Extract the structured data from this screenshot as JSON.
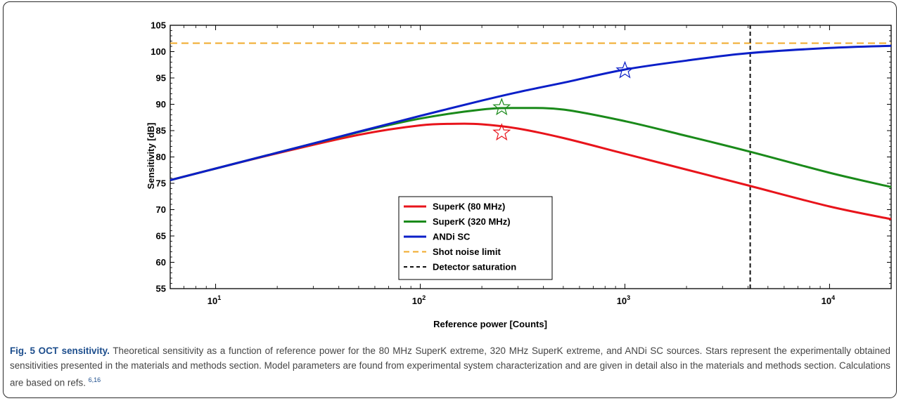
{
  "chart_data": {
    "type": "line",
    "xlabel": "Reference power [Counts]",
    "ylabel": "Sensitivity [dB]",
    "xscale": "log",
    "xlim": [
      6,
      20000
    ],
    "ylim": [
      55,
      105
    ],
    "xticks": [
      {
        "value": 10,
        "label": "10",
        "exp": "1"
      },
      {
        "value": 100,
        "label": "10",
        "exp": "2"
      },
      {
        "value": 1000,
        "label": "10",
        "exp": "3"
      },
      {
        "value": 10000,
        "label": "10",
        "exp": "4"
      }
    ],
    "yticks": [
      55,
      60,
      65,
      70,
      75,
      80,
      85,
      90,
      95,
      100,
      105
    ],
    "grid": false,
    "legend_position": "bottom-center",
    "series": [
      {
        "name": "SuperK (80 MHz)",
        "color": "#e8141b",
        "style": "solid",
        "x": [
          6,
          10,
          20,
          50,
          100,
          150,
          200,
          300,
          500,
          1000,
          2000,
          4000,
          10000,
          20000
        ],
        "y": [
          75.6,
          77.8,
          80.7,
          84.2,
          86.0,
          86.3,
          86.2,
          85.4,
          83.6,
          80.6,
          77.6,
          74.6,
          70.6,
          68.2
        ]
      },
      {
        "name": "SuperK (320 MHz)",
        "color": "#1a8a1a",
        "style": "solid",
        "x": [
          6,
          10,
          20,
          50,
          100,
          200,
          300,
          500,
          1000,
          2000,
          4000,
          10000,
          20000
        ],
        "y": [
          75.6,
          77.8,
          80.8,
          84.7,
          87.3,
          89.0,
          89.3,
          89.0,
          86.8,
          84.0,
          81.1,
          77.0,
          74.3
        ]
      },
      {
        "name": "ANDi SC",
        "color": "#0b1fc8",
        "style": "solid",
        "x": [
          6,
          10,
          20,
          50,
          100,
          200,
          300,
          500,
          1000,
          2000,
          4000,
          10000,
          20000
        ],
        "y": [
          75.6,
          77.8,
          80.8,
          84.8,
          87.8,
          90.7,
          92.3,
          94.1,
          96.6,
          98.3,
          99.7,
          100.7,
          101.1
        ]
      },
      {
        "name": "Shot noise limit",
        "color": "#f0aa2a",
        "style": "dashed",
        "x": [
          6,
          20000
        ],
        "y": [
          101.6,
          101.6
        ]
      },
      {
        "name": "Detector saturation",
        "color": "#111111",
        "style": "dashed",
        "x": [
          4096,
          4096
        ],
        "y": [
          55,
          105
        ]
      }
    ],
    "stars": [
      {
        "x": 250,
        "y": 84.6,
        "color": "#e8141b"
      },
      {
        "x": 250,
        "y": 89.4,
        "color": "#1a8a1a"
      },
      {
        "x": 1000,
        "y": 96.4,
        "color": "#0b1fc8"
      }
    ]
  },
  "caption": {
    "label": "Fig. 5 OCT sensitivity.",
    "text": " Theoretical sensitivity as a function of reference power for the 80 MHz SuperK extreme, 320 MHz SuperK extreme, and ANDi SC sources. Stars represent the experimentally obtained sensitivities presented in the materials and methods section. Model parameters are found from experimental system characterization and are given in detail also in the materials and methods section. Calculations are based on refs. ",
    "refs": "6,16"
  }
}
